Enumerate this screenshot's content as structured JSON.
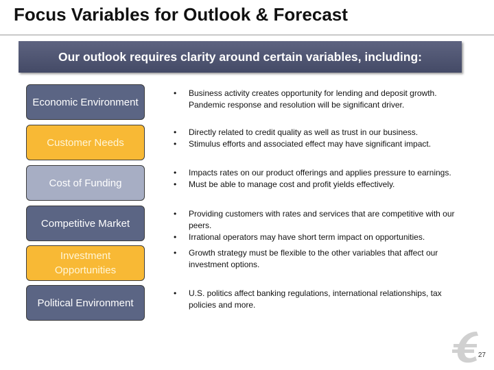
{
  "header": {
    "title": "Focus Variables for Outlook & Forecast",
    "banner": "Our outlook requires clarity around certain variables, including:"
  },
  "items": [
    {
      "label": "Economic Environment",
      "bullets": [
        "Business activity creates opportunity for lending and deposit growth. Pandemic response and resolution will be significant driver."
      ]
    },
    {
      "label": "Customer Needs",
      "bullets": [
        "Directly related to credit quality as well as trust in our business.",
        "Stimulus efforts and associated effect may have significant impact."
      ]
    },
    {
      "label": "Cost of Funding",
      "bullets": [
        "Impacts rates on our product offerings and applies pressure to earnings.",
        "Must be able to manage cost and profit yields effectively."
      ]
    },
    {
      "label": "Competitive Market",
      "bullets": [
        "Providing customers with rates and services that are competitive with our peers.",
        "Irrational operators may have short term impact on opportunities."
      ]
    },
    {
      "label": "Investment Opportunities",
      "bullets": [
        "Growth strategy must be flexible to the other variables that affect our investment options."
      ]
    },
    {
      "label": "Political Environment",
      "bullets": [
        "U.S. politics affect banking regulations, international relationships, tax policies and more."
      ]
    }
  ],
  "footer": {
    "page": "27"
  }
}
